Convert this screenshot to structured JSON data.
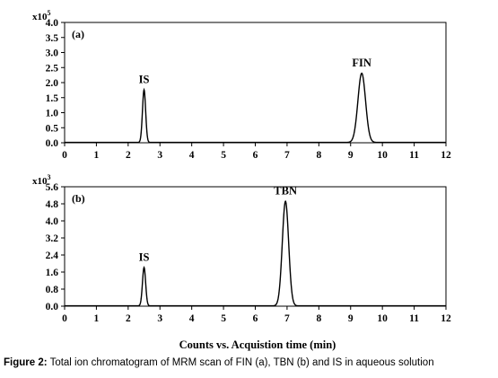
{
  "caption": {
    "label": "Figure 2:",
    "text": "Total ion chromatogram of MRM scan of FIN (a), TBN (b) and IS in aqueous solution"
  },
  "x_axis_title": "Counts vs. Acquistion time (min)",
  "chart_data": [
    {
      "type": "line",
      "panel": "(a)",
      "exponent_label": "x10",
      "exponent_power": "5",
      "xlim": [
        0,
        12
      ],
      "ylim": [
        0,
        4.0
      ],
      "x_ticks": [
        "0",
        "1",
        "2",
        "3",
        "4",
        "5",
        "6",
        "7",
        "8",
        "9",
        "10",
        "11",
        "12"
      ],
      "y_ticks": [
        "0.0",
        "0.5",
        "1.0",
        "1.5",
        "2.0",
        "2.5",
        "3.0",
        "3.5",
        "4.0"
      ],
      "peaks": [
        {
          "label": "IS",
          "x": 2.5,
          "height": 1.75,
          "width": 0.05
        },
        {
          "label": "FIN",
          "x": 9.35,
          "height": 2.3,
          "width": 0.12
        }
      ],
      "line_color": "#000000"
    },
    {
      "type": "line",
      "panel": "(b)",
      "exponent_label": "x10",
      "exponent_power": "3",
      "xlim": [
        0,
        12
      ],
      "ylim": [
        0,
        5.6
      ],
      "x_ticks": [
        "0",
        "1",
        "2",
        "3",
        "4",
        "5",
        "6",
        "7",
        "8",
        "9",
        "10",
        "11",
        "12"
      ],
      "y_ticks": [
        "0.0",
        "0.8",
        "1.6",
        "2.4",
        "3.2",
        "4.0",
        "4.8",
        "5.6"
      ],
      "peaks": [
        {
          "label": "IS",
          "x": 2.5,
          "height": 1.8,
          "width": 0.05
        },
        {
          "label": "TBN",
          "x": 6.95,
          "height": 4.9,
          "width": 0.1
        }
      ],
      "line_color": "#000000"
    }
  ]
}
